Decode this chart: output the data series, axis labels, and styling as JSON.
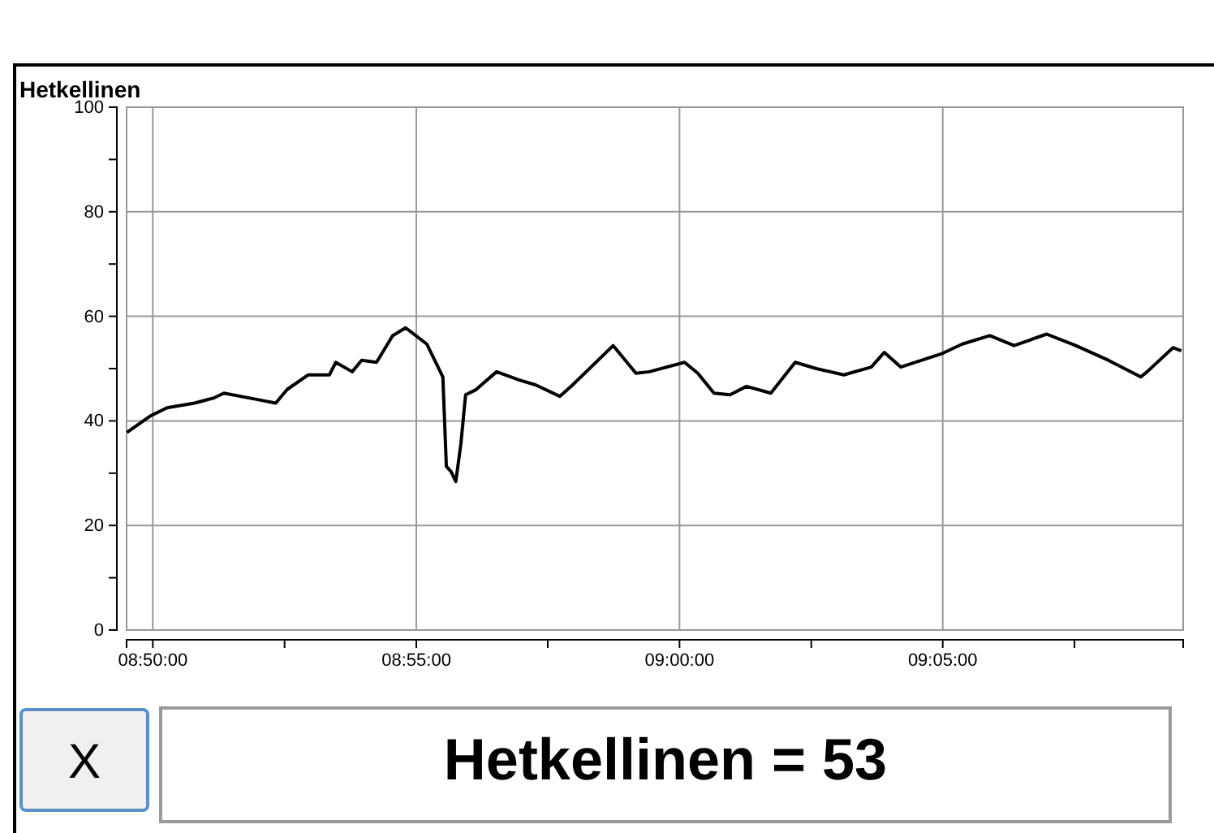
{
  "chart_data": {
    "type": "line",
    "title": "Hetkellinen",
    "x": [
      8.8251,
      8.8327,
      8.8378,
      8.8465,
      8.8527,
      8.8558,
      8.8671,
      8.8722,
      8.8758,
      8.8825,
      8.8892,
      8.8912,
      8.8964,
      8.8994,
      8.9041,
      8.9092,
      8.9133,
      8.92,
      8.9251,
      8.9262,
      8.9277,
      8.9292,
      8.9308,
      8.9323,
      8.9354,
      8.9421,
      8.9493,
      8.9544,
      8.9621,
      8.9662,
      8.979,
      8.9862,
      8.9904,
      9.0016,
      9.0058,
      9.0109,
      9.016,
      9.0212,
      9.0289,
      9.0366,
      9.0433,
      9.052,
      9.0607,
      9.0648,
      9.07,
      9.0828,
      9.0895,
      9.0982,
      9.1059,
      9.1162,
      9.1254,
      9.1357,
      9.146,
      9.148,
      9.1562,
      9.1588
    ],
    "series": [
      {
        "color": "#000000",
        "values": [
          37.8,
          41,
          42.5,
          43.4,
          44.4,
          45.3,
          44,
          43.4,
          46,
          48.8,
          48.8,
          51.2,
          49.4,
          51.6,
          51.2,
          56.3,
          57.8,
          54.7,
          48.4,
          31.3,
          30.3,
          28.4,
          35.6,
          45,
          45.9,
          49.4,
          47.8,
          46.9,
          44.7,
          46.9,
          54.4,
          49.1,
          49.4,
          51.2,
          49.1,
          45.3,
          45,
          46.6,
          45.3,
          51.2,
          50,
          48.8,
          50.3,
          53.1,
          50.3,
          52.8,
          54.7,
          56.3,
          54.4,
          56.6,
          54.4,
          51.6,
          48.4,
          49.4,
          54,
          53.4
        ]
      }
    ],
    "xlim": [
      8.825,
      9.1594
    ],
    "xticks": [
      {
        "value": 8.8333,
        "label": "08:50:00"
      },
      {
        "value": 8.875,
        "label": null
      },
      {
        "value": 8.9167,
        "label": "08:55:00"
      },
      {
        "value": 8.9583,
        "label": null
      },
      {
        "value": 9.0,
        "label": "09:00:00"
      },
      {
        "value": 9.0417,
        "label": null
      },
      {
        "value": 9.0833,
        "label": "09:05:00"
      },
      {
        "value": 9.125,
        "label": null
      }
    ],
    "ylim": [
      0,
      100
    ],
    "yticks": [
      0,
      {
        "value": 10,
        "label": null
      },
      20,
      {
        "value": 30,
        "label": null
      },
      40,
      {
        "value": 50,
        "label": null
      },
      60,
      {
        "value": 70,
        "label": null
      },
      80,
      {
        "value": 90,
        "label": null
      },
      100
    ],
    "grid": true,
    "line_style": "solid",
    "annotations": [
      "X",
      "Hetkellinen = 53"
    ]
  }
}
